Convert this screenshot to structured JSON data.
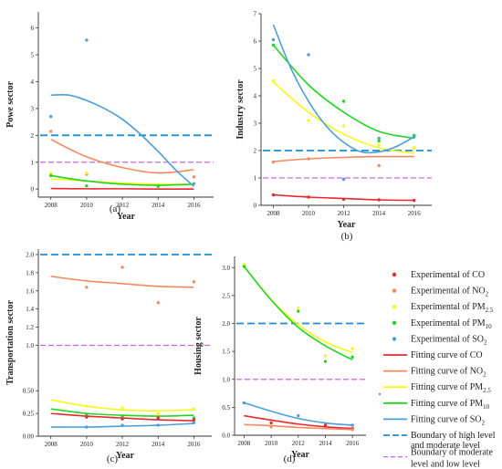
{
  "chart_data": [
    {
      "panel": "(a)",
      "type": "scatter",
      "xlabel": "Year",
      "ylabel": "Powe sector",
      "xlim": [
        2007.3,
        2017.1
      ],
      "ylim": [
        -0.3,
        6.6
      ],
      "xticks": [
        2008,
        2010,
        2012,
        2014,
        2016
      ],
      "yticks": [
        0,
        1,
        2,
        3,
        4,
        5,
        6
      ],
      "ytick_labels": [
        "0",
        "1",
        "2",
        "3",
        "4",
        "5",
        "6"
      ],
      "boundaries": [
        {
          "series": "high",
          "y": 2.0
        },
        {
          "series": "low",
          "y": 1.0
        }
      ],
      "points": [
        {
          "series": "NO2",
          "data": [
            [
              2008,
              2.15
            ],
            [
              2010,
              0.55
            ],
            [
              2016,
              0.45
            ]
          ]
        },
        {
          "series": "SO2",
          "data": [
            [
              2008,
              2.7
            ],
            [
              2010,
              5.55
            ],
            [
              2016,
              0.2
            ]
          ]
        },
        {
          "series": "PM25",
          "data": [
            [
              2008,
              0.58
            ],
            [
              2010,
              0.6
            ]
          ]
        },
        {
          "series": "PM10",
          "data": [
            [
              2008,
              0.5
            ],
            [
              2010,
              0.12
            ],
            [
              2014,
              0.1
            ]
          ]
        }
      ],
      "curves": [
        {
          "series": "CO",
          "data": [
            [
              2008,
              0.02
            ],
            [
              2010,
              0.01
            ],
            [
              2012,
              0.01
            ],
            [
              2014,
              0.0
            ],
            [
              2016,
              0.0
            ]
          ]
        },
        {
          "series": "NO2",
          "data": [
            [
              2008,
              1.85
            ],
            [
              2010,
              1.2
            ],
            [
              2012,
              0.8
            ],
            [
              2014,
              0.6
            ],
            [
              2016,
              0.72
            ]
          ]
        },
        {
          "series": "SO2",
          "data": [
            [
              2008,
              3.5
            ],
            [
              2009,
              3.5
            ],
            [
              2010,
              3.3
            ],
            [
              2011,
              3.0
            ],
            [
              2012,
              2.6
            ],
            [
              2013,
              2.05
            ],
            [
              2014,
              1.4
            ],
            [
              2015,
              0.7
            ],
            [
              2016,
              0.1
            ]
          ]
        },
        {
          "series": "PM25",
          "data": [
            [
              2008,
              0.38
            ],
            [
              2010,
              0.3
            ],
            [
              2012,
              0.22
            ],
            [
              2014,
              0.18
            ],
            [
              2016,
              0.18
            ]
          ]
        },
        {
          "series": "PM10",
          "data": [
            [
              2008,
              0.5
            ],
            [
              2010,
              0.3
            ],
            [
              2012,
              0.18
            ],
            [
              2014,
              0.14
            ],
            [
              2016,
              0.18
            ]
          ]
        }
      ]
    },
    {
      "panel": "(b)",
      "type": "scatter",
      "xlabel": "Year",
      "ylabel": "Industry sector",
      "xlim": [
        2007.3,
        2017.0
      ],
      "ylim": [
        0,
        7
      ],
      "xticks": [
        2008,
        2010,
        2012,
        2014,
        2016
      ],
      "yticks": [
        0,
        1,
        2,
        3,
        4,
        5,
        6,
        7
      ],
      "ytick_labels": [
        "0",
        "1",
        "2",
        "3",
        "4",
        "5",
        "6",
        "7"
      ],
      "boundaries": [
        {
          "series": "high",
          "y": 2.0
        },
        {
          "series": "low",
          "y": 1.0
        }
      ],
      "points": [
        {
          "series": "CO",
          "data": [
            [
              2008,
              0.38
            ],
            [
              2010,
              0.3
            ],
            [
              2012,
              0.22
            ],
            [
              2014,
              0.2
            ],
            [
              2016,
              0.18
            ]
          ]
        },
        {
          "series": "NO2",
          "data": [
            [
              2008,
              1.58
            ],
            [
              2010,
              1.7
            ],
            [
              2014,
              1.45
            ],
            [
              2016,
              2.1
            ]
          ]
        },
        {
          "series": "PM25",
          "data": [
            [
              2008,
              4.55
            ],
            [
              2010,
              3.1
            ],
            [
              2012,
              2.9
            ],
            [
              2014,
              2.2
            ],
            [
              2016,
              2.1
            ]
          ]
        },
        {
          "series": "PM10",
          "data": [
            [
              2008,
              5.85
            ],
            [
              2012,
              3.8
            ],
            [
              2014,
              2.35
            ],
            [
              2016,
              2.55
            ]
          ]
        },
        {
          "series": "SO2",
          "data": [
            [
              2008,
              6.05
            ],
            [
              2010,
              5.5
            ],
            [
              2012,
              0.95
            ],
            [
              2014,
              2.45
            ],
            [
              2016,
              2.5
            ]
          ]
        }
      ],
      "curves": [
        {
          "series": "CO",
          "data": [
            [
              2008,
              0.38
            ],
            [
              2010,
              0.3
            ],
            [
              2012,
              0.25
            ],
            [
              2014,
              0.2
            ],
            [
              2016,
              0.18
            ]
          ]
        },
        {
          "series": "NO2",
          "data": [
            [
              2008,
              1.6
            ],
            [
              2010,
              1.7
            ],
            [
              2012,
              1.75
            ],
            [
              2014,
              1.78
            ],
            [
              2016,
              1.78
            ]
          ]
        },
        {
          "series": "PM25",
          "data": [
            [
              2008,
              4.5
            ],
            [
              2010,
              3.4
            ],
            [
              2012,
              2.6
            ],
            [
              2014,
              2.1
            ],
            [
              2016,
              1.9
            ]
          ]
        },
        {
          "series": "PM10",
          "data": [
            [
              2008,
              5.85
            ],
            [
              2010,
              4.4
            ],
            [
              2012,
              3.4
            ],
            [
              2014,
              2.7
            ],
            [
              2016,
              2.45
            ]
          ]
        },
        {
          "series": "SO2",
          "data": [
            [
              2008,
              6.6
            ],
            [
              2009,
              5.0
            ],
            [
              2010,
              3.8
            ],
            [
              2011,
              2.9
            ],
            [
              2012,
              2.3
            ],
            [
              2013,
              1.95
            ],
            [
              2014,
              1.95
            ],
            [
              2015,
              2.15
            ],
            [
              2016,
              2.5
            ]
          ]
        }
      ]
    },
    {
      "panel": "(c)",
      "type": "scatter",
      "xlabel": "Year",
      "ylabel": "Transportation sector",
      "xlim": [
        2007.3,
        2017.0
      ],
      "ylim": [
        0,
        2.06
      ],
      "xticks": [
        2008,
        2010,
        2012,
        2014,
        2016
      ],
      "yticks": [
        0,
        0.25,
        0.5,
        1.0,
        1.2,
        1.4,
        1.6,
        1.8,
        2.0
      ],
      "ytick_labels": [
        "0.00",
        "0.25",
        "0.50",
        "1.0",
        "1.2",
        "1.4",
        "1.6",
        "1.8",
        "2.0"
      ],
      "boundaries": [
        {
          "series": "high",
          "y": 2.0
        },
        {
          "series": "low",
          "y": 1.0
        }
      ],
      "points": [
        {
          "series": "NO2",
          "data": [
            [
              2010,
              1.64
            ],
            [
              2012,
              1.86
            ],
            [
              2014,
              1.47
            ],
            [
              2016,
              1.7
            ]
          ]
        },
        {
          "series": "PM25",
          "data": [
            [
              2010,
              0.33
            ],
            [
              2012,
              0.31
            ],
            [
              2014,
              0.25
            ],
            [
              2016,
              0.3
            ]
          ]
        },
        {
          "series": "PM10",
          "data": [
            [
              2010,
              0.24
            ],
            [
              2012,
              0.22
            ],
            [
              2014,
              0.21
            ],
            [
              2016,
              0.2
            ]
          ]
        },
        {
          "series": "CO",
          "data": [
            [
              2010,
              0.21
            ],
            [
              2012,
              0.19
            ],
            [
              2014,
              0.2
            ],
            [
              2016,
              0.18
            ]
          ]
        },
        {
          "series": "SO2",
          "data": [
            [
              2010,
              0.1
            ],
            [
              2012,
              0.12
            ],
            [
              2014,
              0.12
            ],
            [
              2016,
              0.15
            ]
          ]
        }
      ],
      "curves": [
        {
          "series": "NO2",
          "data": [
            [
              2008,
              1.76
            ],
            [
              2010,
              1.71
            ],
            [
              2012,
              1.68
            ],
            [
              2014,
              1.65
            ],
            [
              2016,
              1.64
            ]
          ]
        },
        {
          "series": "PM25",
          "data": [
            [
              2008,
              0.4
            ],
            [
              2010,
              0.33
            ],
            [
              2012,
              0.29
            ],
            [
              2014,
              0.28
            ],
            [
              2016,
              0.29
            ]
          ]
        },
        {
          "series": "PM10",
          "data": [
            [
              2008,
              0.3
            ],
            [
              2010,
              0.25
            ],
            [
              2012,
              0.23
            ],
            [
              2014,
              0.22
            ],
            [
              2016,
              0.23
            ]
          ]
        },
        {
          "series": "CO",
          "data": [
            [
              2008,
              0.25
            ],
            [
              2010,
              0.22
            ],
            [
              2012,
              0.2
            ],
            [
              2014,
              0.18
            ],
            [
              2016,
              0.17
            ]
          ]
        },
        {
          "series": "SO2",
          "data": [
            [
              2008,
              0.1
            ],
            [
              2010,
              0.1
            ],
            [
              2012,
              0.11
            ],
            [
              2014,
              0.12
            ],
            [
              2016,
              0.14
            ]
          ]
        }
      ]
    },
    {
      "panel": "(d)",
      "type": "scatter",
      "xlabel": "Year",
      "ylabel": "Housing sector",
      "xlim": [
        2007.3,
        2017.0
      ],
      "ylim": [
        0,
        3.2
      ],
      "xticks": [
        2008,
        2010,
        2012,
        2014,
        2016
      ],
      "yticks": [
        0,
        0.5,
        1.0,
        1.5,
        2.0,
        2.5,
        3.0
      ],
      "ytick_labels": [
        "0.0",
        "0.5",
        "1.0",
        "1.5",
        "2.0",
        "2.5",
        "3.0"
      ],
      "boundaries": [
        {
          "series": "high",
          "y": 2.0
        },
        {
          "series": "low",
          "y": 1.0
        }
      ],
      "points": [
        {
          "series": "PM25",
          "data": [
            [
              2008,
              3.05
            ],
            [
              2012,
              2.28
            ],
            [
              2014,
              1.42
            ],
            [
              2016,
              1.55
            ]
          ]
        },
        {
          "series": "PM10",
          "data": [
            [
              2008,
              3.02
            ],
            [
              2012,
              2.22
            ],
            [
              2014,
              1.32
            ],
            [
              2016,
              1.4
            ]
          ]
        },
        {
          "series": "SO2",
          "data": [
            [
              2008,
              0.58
            ],
            [
              2012,
              0.35
            ],
            [
              2016,
              0.18
            ]
          ]
        },
        {
          "series": "CO",
          "data": [
            [
              2010,
              0.22
            ],
            [
              2014,
              0.18
            ],
            [
              2016,
              0.12
            ]
          ]
        },
        {
          "series": "NO2",
          "data": [
            [
              2010,
              0.15
            ],
            [
              2016,
              0.1
            ]
          ]
        }
      ],
      "curves": [
        {
          "series": "PM25",
          "data": [
            [
              2008,
              3.02
            ],
            [
              2010,
              2.43
            ],
            [
              2012,
              1.98
            ],
            [
              2014,
              1.67
            ],
            [
              2016,
              1.48
            ]
          ]
        },
        {
          "series": "PM10",
          "data": [
            [
              2008,
              3.02
            ],
            [
              2010,
              2.42
            ],
            [
              2012,
              1.93
            ],
            [
              2014,
              1.6
            ],
            [
              2016,
              1.35
            ]
          ]
        },
        {
          "series": "SO2",
          "data": [
            [
              2008,
              0.58
            ],
            [
              2010,
              0.43
            ],
            [
              2012,
              0.3
            ],
            [
              2014,
              0.22
            ],
            [
              2016,
              0.18
            ]
          ]
        },
        {
          "series": "CO",
          "data": [
            [
              2008,
              0.35
            ],
            [
              2010,
              0.27
            ],
            [
              2012,
              0.2
            ],
            [
              2014,
              0.15
            ],
            [
              2016,
              0.12
            ]
          ]
        },
        {
          "series": "NO2",
          "data": [
            [
              2008,
              0.19
            ],
            [
              2010,
              0.17
            ],
            [
              2012,
              0.14
            ],
            [
              2014,
              0.12
            ],
            [
              2016,
              0.1
            ]
          ]
        }
      ]
    }
  ],
  "series_colors": {
    "CO": "#e8282e",
    "NO2": "#f58a5e",
    "PM25": "#f7f71a",
    "PM10": "#22d422",
    "SO2": "#4a9fd8",
    "high": "#1a8fd8",
    "low": "#cc66dd"
  },
  "legend": [
    {
      "kind": "point",
      "series": "CO",
      "text": "Experimental of CO",
      "sub": ""
    },
    {
      "kind": "point",
      "series": "NO2",
      "text": "Experimental of NO",
      "sub": "2"
    },
    {
      "kind": "point",
      "series": "PM25",
      "text": "Experimental of PM",
      "sub": "2.5"
    },
    {
      "kind": "point",
      "series": "PM10",
      "text": "Experimental of PM",
      "sub": "10"
    },
    {
      "kind": "point",
      "series": "SO2",
      "text": "Experimental of SO",
      "sub": "2"
    },
    {
      "kind": "line",
      "series": "CO",
      "text": "Fitting curve of CO",
      "sub": ""
    },
    {
      "kind": "line",
      "series": "NO2",
      "text": "Fitting curve of NO",
      "sub": "2"
    },
    {
      "kind": "line",
      "series": "PM25",
      "text": "Fitting curve of PM",
      "sub": "2.5"
    },
    {
      "kind": "line",
      "series": "PM10",
      "text": "Fitting curve of PM",
      "sub": "10"
    },
    {
      "kind": "line",
      "series": "SO2",
      "text": "Fitting curve of SO",
      "sub": "2"
    },
    {
      "kind": "dash-high",
      "series": "high",
      "text": "Boundary of high level",
      "text2": "and moderate level"
    },
    {
      "kind": "dash-low",
      "series": "low",
      "text": "Boundary of moderate",
      "text2": "level and low level"
    }
  ]
}
